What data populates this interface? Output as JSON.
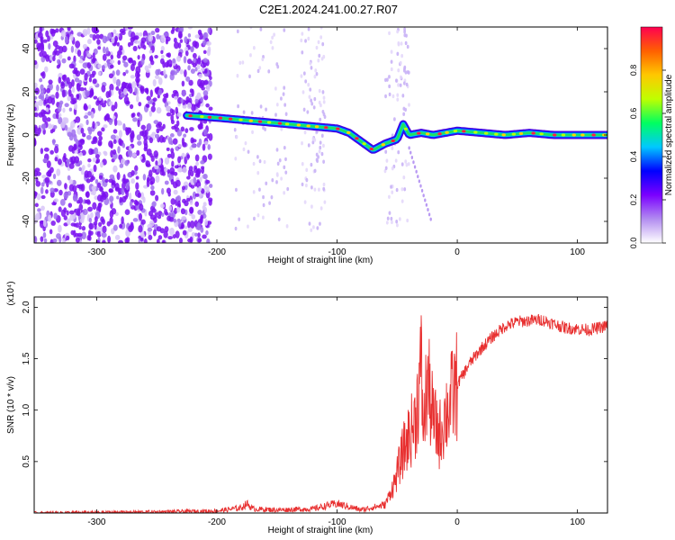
{
  "title": "C2E1.2024.241.00.27.R07",
  "chart_data": [
    {
      "type": "heatmap",
      "xlabel": "Height of straight line (km)",
      "ylabel": "Frequency (Hz)",
      "xlim": [
        -352,
        125
      ],
      "ylim": [
        -50,
        50
      ],
      "xticks": [
        -300,
        -200,
        -100,
        0,
        100
      ],
      "yticks": [
        -40,
        -20,
        0,
        20,
        40
      ],
      "colorbar": {
        "label": "Normalized spectral amplitude",
        "range": [
          0,
          1
        ],
        "ticks": [
          "0.0",
          "0.2",
          "0.4",
          "0.6",
          "0.8"
        ],
        "colors": [
          "#ffffff",
          "#b28cf0",
          "#7a00ff",
          "#0000ff",
          "#00c8ff",
          "#00ff60",
          "#bfff00",
          "#ffc800",
          "#ff6000",
          "#ff0050"
        ]
      },
      "ridge": {
        "x": [
          -225,
          -200,
          -180,
          -160,
          -140,
          -120,
          -100,
          -90,
          -80,
          -70,
          -60,
          -50,
          -45,
          -40,
          -30,
          -20,
          -10,
          0,
          20,
          40,
          60,
          80,
          100,
          120
        ],
        "freq": [
          9,
          8,
          7,
          6,
          5,
          4,
          3,
          1,
          -3,
          -7,
          -4,
          -2,
          5,
          0,
          1,
          0,
          1,
          2,
          1,
          0,
          1,
          0,
          0,
          0
        ]
      },
      "noise_region_x": [
        -352,
        -205
      ]
    },
    {
      "type": "line",
      "xlabel": "Height of straight line (km)",
      "ylabel": "SNR (10 * v/v)",
      "multiplier_label": "(x10⁴)",
      "xlim": [
        -352,
        125
      ],
      "ylim": [
        0,
        2.1
      ],
      "xticks": [
        -300,
        -200,
        -100,
        0,
        100
      ],
      "yticks": [
        "0.5",
        "1.0",
        "1.5",
        "2.0"
      ],
      "ytick_values": [
        0.5,
        1.0,
        1.5,
        2.0
      ],
      "series": [
        {
          "color": "#e83030",
          "x": [
            -352,
            -250,
            -200,
            -180,
            -175,
            -170,
            -150,
            -120,
            -105,
            -100,
            -90,
            -80,
            -60,
            -52,
            -45,
            -40,
            -35,
            -30,
            -28,
            -25,
            -20,
            -15,
            -10,
            0,
            10,
            20,
            30,
            40,
            50,
            70,
            90,
            110,
            125
          ],
          "y": [
            0.0,
            0.01,
            0.02,
            0.05,
            0.09,
            0.04,
            0.03,
            0.04,
            0.08,
            0.09,
            0.06,
            0.03,
            0.08,
            0.3,
            0.6,
            0.75,
            0.9,
            1.4,
            0.8,
            1.3,
            0.9,
            0.75,
            0.95,
            1.25,
            1.45,
            1.6,
            1.72,
            1.82,
            1.86,
            1.88,
            1.8,
            1.78,
            1.82
          ]
        }
      ]
    }
  ]
}
